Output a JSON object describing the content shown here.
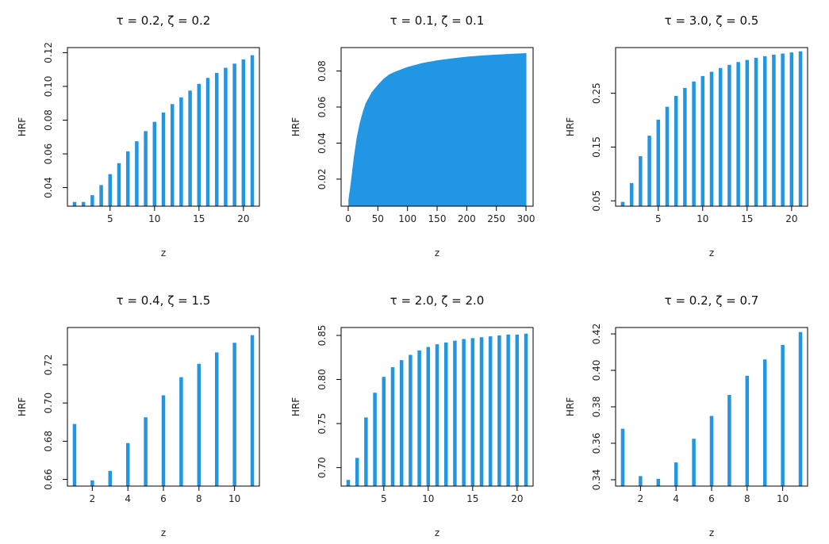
{
  "colors": {
    "bar": "#2196E3",
    "axis": "#000000"
  },
  "chart_data": [
    {
      "type": "bar",
      "title": "τ = 0.2, ζ = 0.2",
      "xlabel": "z",
      "ylabel": "HRF",
      "xlim": [
        0.2,
        21.8
      ],
      "ylim": [
        0.029,
        0.123
      ],
      "xticks": [
        5,
        10,
        15,
        20
      ],
      "yticks": [
        0.04,
        0.06,
        0.08,
        0.1,
        0.12
      ],
      "ytick_labels": [
        "0.04",
        "0.06",
        "0.08",
        "0.10",
        "0.12"
      ],
      "x": [
        1,
        2,
        3,
        4,
        5,
        6,
        7,
        8,
        9,
        10,
        11,
        12,
        13,
        14,
        15,
        16,
        17,
        18,
        19,
        20,
        21
      ],
      "values": [
        0.0315,
        0.0315,
        0.0355,
        0.0415,
        0.048,
        0.0545,
        0.0615,
        0.0675,
        0.0735,
        0.079,
        0.0845,
        0.0895,
        0.0935,
        0.0975,
        0.1015,
        0.105,
        0.108,
        0.111,
        0.1135,
        0.116,
        0.1185
      ]
    },
    {
      "type": "area",
      "title": "τ = 0.1, ζ = 0.1",
      "xlabel": "z",
      "ylabel": "HRF",
      "xlim": [
        -12,
        312
      ],
      "ylim": [
        0.005,
        0.093
      ],
      "xticks": [
        0,
        50,
        100,
        150,
        200,
        250,
        300
      ],
      "yticks": [
        0.02,
        0.04,
        0.06,
        0.08
      ],
      "ytick_labels": [
        "0.02",
        "0.04",
        "0.06",
        "0.08"
      ],
      "x": [
        1,
        5,
        10,
        15,
        20,
        25,
        30,
        40,
        50,
        60,
        70,
        80,
        100,
        125,
        150,
        175,
        200,
        225,
        250,
        275,
        300
      ],
      "values": [
        0.0085,
        0.018,
        0.032,
        0.043,
        0.051,
        0.057,
        0.062,
        0.068,
        0.072,
        0.0755,
        0.078,
        0.0795,
        0.082,
        0.0842,
        0.0857,
        0.0868,
        0.0877,
        0.0884,
        0.0889,
        0.0893,
        0.0897
      ]
    },
    {
      "type": "bar",
      "title": "τ = 3.0, ζ = 0.5",
      "xlabel": "z",
      "ylabel": "HRF",
      "xlim": [
        0.2,
        21.8
      ],
      "ylim": [
        0.04,
        0.335
      ],
      "xticks": [
        5,
        10,
        15,
        20
      ],
      "yticks": [
        0.05,
        0.15,
        0.25
      ],
      "ytick_labels": [
        "0.05",
        "0.15",
        "0.25"
      ],
      "x": [
        1,
        2,
        3,
        4,
        5,
        6,
        7,
        8,
        9,
        10,
        11,
        12,
        13,
        14,
        15,
        16,
        17,
        18,
        19,
        20,
        21
      ],
      "values": [
        0.048,
        0.083,
        0.133,
        0.171,
        0.201,
        0.225,
        0.245,
        0.26,
        0.272,
        0.282,
        0.29,
        0.297,
        0.303,
        0.308,
        0.312,
        0.316,
        0.319,
        0.322,
        0.324,
        0.326,
        0.328
      ]
    },
    {
      "type": "bar",
      "title": "τ = 0.4, ζ = 1.5",
      "xlabel": "z",
      "ylabel": "HRF",
      "xlim": [
        0.6,
        11.4
      ],
      "ylim": [
        0.6565,
        0.7395
      ],
      "xticks": [
        2,
        4,
        6,
        8,
        10
      ],
      "yticks": [
        0.66,
        0.68,
        0.7,
        0.72
      ],
      "ytick_labels": [
        "0.66",
        "0.68",
        "0.70",
        "0.72"
      ],
      "x": [
        1,
        2,
        3,
        4,
        5,
        6,
        7,
        8,
        9,
        10,
        11
      ],
      "values": [
        0.689,
        0.6595,
        0.6645,
        0.679,
        0.6925,
        0.704,
        0.7135,
        0.7205,
        0.7265,
        0.7315,
        0.7355
      ]
    },
    {
      "type": "bar",
      "title": "τ = 2.0, ζ = 2.0",
      "xlabel": "z",
      "ylabel": "HRF",
      "xlim": [
        0.2,
        21.8
      ],
      "ylim": [
        0.679,
        0.859
      ],
      "xticks": [
        5,
        10,
        15,
        20
      ],
      "yticks": [
        0.7,
        0.75,
        0.8,
        0.85
      ],
      "ytick_labels": [
        "0.70",
        "0.75",
        "0.80",
        "0.85"
      ],
      "x": [
        1,
        2,
        3,
        4,
        5,
        6,
        7,
        8,
        9,
        10,
        11,
        12,
        13,
        14,
        15,
        16,
        17,
        18,
        19,
        20,
        21
      ],
      "values": [
        0.686,
        0.711,
        0.757,
        0.785,
        0.803,
        0.814,
        0.822,
        0.828,
        0.833,
        0.837,
        0.84,
        0.842,
        0.844,
        0.846,
        0.847,
        0.848,
        0.849,
        0.85,
        0.851,
        0.851,
        0.852
      ]
    },
    {
      "type": "bar",
      "title": "τ = 0.2, ζ = 0.7",
      "xlabel": "z",
      "ylabel": "HRF",
      "xlim": [
        0.6,
        11.4
      ],
      "ylim": [
        0.3365,
        0.4235
      ],
      "xticks": [
        2,
        4,
        6,
        8,
        10
      ],
      "yticks": [
        0.34,
        0.36,
        0.38,
        0.4,
        0.42
      ],
      "ytick_labels": [
        "0.34",
        "0.36",
        "0.38",
        "0.40",
        "0.42"
      ],
      "x": [
        1,
        2,
        3,
        4,
        5,
        6,
        7,
        8,
        9,
        10,
        11
      ],
      "values": [
        0.368,
        0.342,
        0.3405,
        0.3495,
        0.3625,
        0.375,
        0.3865,
        0.397,
        0.406,
        0.414,
        0.421
      ]
    }
  ]
}
